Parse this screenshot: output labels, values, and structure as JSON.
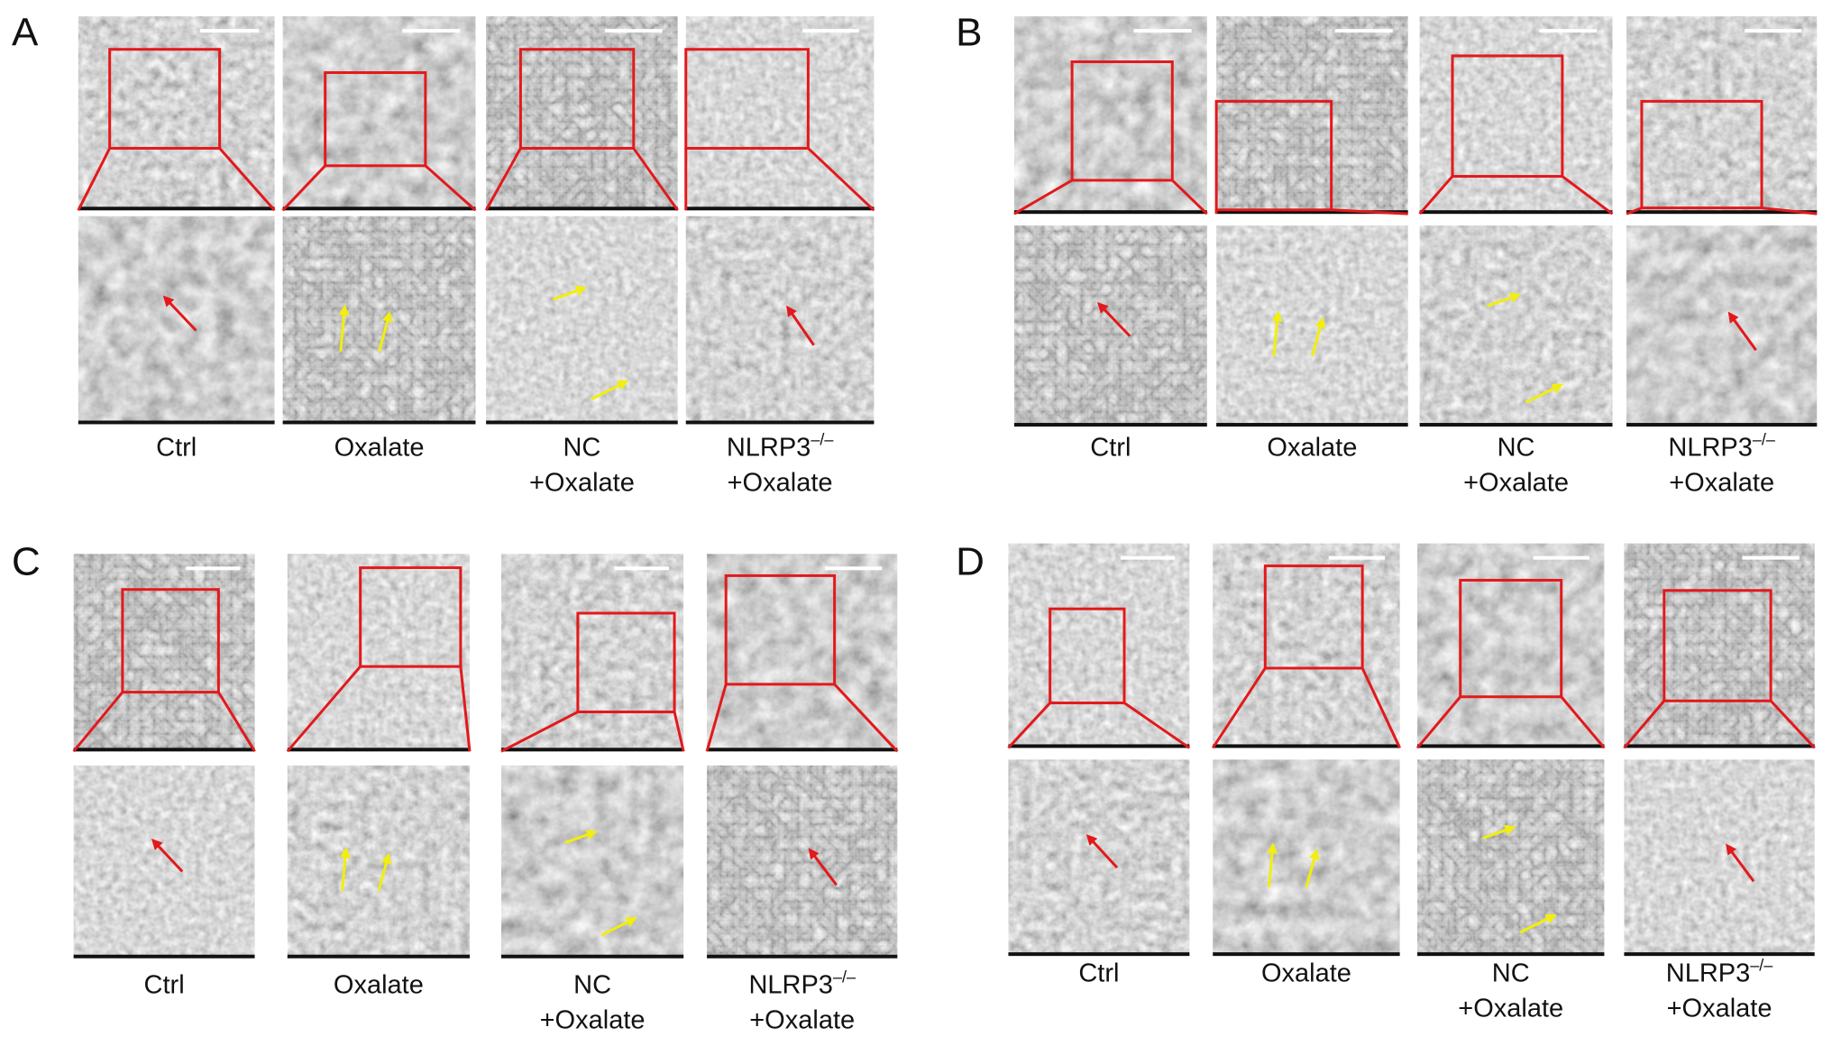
{
  "panels": [
    {
      "label": "A",
      "columns": [
        {
          "lines": [
            "Ctrl"
          ]
        },
        {
          "lines": [
            "Oxalate"
          ]
        },
        {
          "lines": [
            "NC",
            "+Oxalate"
          ]
        },
        {
          "lines": [
            "NLRP3",
            "+Oxalate"
          ],
          "superscript": "–/–"
        }
      ]
    },
    {
      "label": "B",
      "columns": [
        {
          "lines": [
            "Ctrl"
          ]
        },
        {
          "lines": [
            "Oxalate"
          ]
        },
        {
          "lines": [
            "NC",
            "+Oxalate"
          ]
        },
        {
          "lines": [
            "NLRP3",
            "+Oxalate"
          ],
          "superscript": "–/–"
        }
      ]
    },
    {
      "label": "C",
      "columns": [
        {
          "lines": [
            "Ctrl"
          ]
        },
        {
          "lines": [
            "Oxalate"
          ]
        },
        {
          "lines": [
            "NC",
            "+Oxalate"
          ]
        },
        {
          "lines": [
            "NLRP3",
            "+Oxalate"
          ],
          "superscript": "–/–"
        }
      ]
    },
    {
      "label": "D",
      "columns": [
        {
          "lines": [
            "Ctrl"
          ]
        },
        {
          "lines": [
            "Oxalate"
          ]
        },
        {
          "lines": [
            "NC",
            "+Oxalate"
          ]
        },
        {
          "lines": [
            "NLRP3",
            "+Oxalate"
          ],
          "superscript": "–/–"
        }
      ]
    }
  ]
}
